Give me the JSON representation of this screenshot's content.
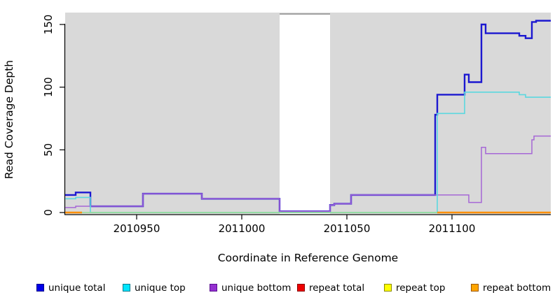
{
  "chart_data": {
    "type": "line",
    "subtype": "step-coverage",
    "title": "",
    "xlabel": "Coordinate in Reference Genome",
    "ylabel": "Read Coverage Depth",
    "xlim": [
      2010916,
      2011147
    ],
    "ylim": [
      0,
      159
    ],
    "x_ticks": [
      {
        "value": 2010950,
        "label": "2010950"
      },
      {
        "value": 2011000,
        "label": "2011000"
      },
      {
        "value": 2011050,
        "label": "2011050"
      },
      {
        "value": 2011100,
        "label": "2011100"
      }
    ],
    "y_ticks": [
      {
        "value": 0,
        "label": "0"
      },
      {
        "value": 50,
        "label": "50"
      },
      {
        "value": 100,
        "label": "100"
      },
      {
        "value": 150,
        "label": "150"
      }
    ],
    "grid": false,
    "plot_background": "#d9d9d9",
    "gap_region": {
      "start": 2011018,
      "end": 2011042,
      "color": "#ffffff",
      "note": "white masked band, full plot height"
    },
    "baseline_overlap": {
      "note": "unique top + repeat top both at 0 render as a light-green baseline across the plot",
      "color": "#92dc92",
      "value": 0,
      "from": 2010916,
      "to": 2011147
    },
    "series": [
      {
        "name": "unique total",
        "color": "#1c18d0",
        "width": 2.4,
        "visible": true,
        "end": 2011147,
        "steps": [
          [
            2010916,
            14
          ],
          [
            2010921,
            16
          ],
          [
            2010928,
            5
          ],
          [
            2010953,
            15
          ],
          [
            2010981,
            11
          ],
          [
            2011018,
            1
          ],
          [
            2011042,
            6
          ],
          [
            2011044,
            7
          ],
          [
            2011052,
            14
          ],
          [
            2011092,
            78
          ],
          [
            2011093,
            94
          ],
          [
            2011106,
            110
          ],
          [
            2011108,
            104
          ],
          [
            2011114,
            150
          ],
          [
            2011116,
            143
          ],
          [
            2011132,
            141
          ],
          [
            2011135,
            139
          ],
          [
            2011138,
            152
          ],
          [
            2011140,
            153
          ]
        ]
      },
      {
        "name": "unique bottom",
        "color": "#a667d6",
        "width": 1.5,
        "visible": true,
        "end": 2011147,
        "steps": [
          [
            2010916,
            4
          ],
          [
            2010921,
            5
          ],
          [
            2010953,
            15
          ],
          [
            2010981,
            11
          ],
          [
            2011018,
            1
          ],
          [
            2011042,
            6
          ],
          [
            2011044,
            7
          ],
          [
            2011052,
            14
          ],
          [
            2011108,
            8
          ],
          [
            2011114,
            52
          ],
          [
            2011116,
            47
          ],
          [
            2011138,
            58
          ],
          [
            2011139,
            61
          ]
        ]
      },
      {
        "name": "unique top",
        "color": "#5bd8df",
        "width": 1.6,
        "visible": true,
        "end": 2011147,
        "steps": [
          [
            2010916,
            11
          ],
          [
            2010921,
            12
          ],
          [
            2010928,
            0
          ],
          [
            2011093,
            79
          ],
          [
            2011106,
            96
          ],
          [
            2011132,
            94
          ],
          [
            2011135,
            92
          ]
        ]
      },
      {
        "name": "repeat total",
        "color": "#ee0000",
        "width": 1.5,
        "visible": false,
        "end": 2011147,
        "steps": [
          [
            2010916,
            0
          ]
        ],
        "note": "flat at 0, hidden beneath overlapping series"
      },
      {
        "name": "repeat top",
        "color": "#ffff00",
        "width": 1.5,
        "visible": false,
        "end": 2011147,
        "steps": [
          [
            2010916,
            0
          ]
        ],
        "note": "flat at 0, blends with unique top into light-green baseline"
      },
      {
        "name": "repeat bottom",
        "color": "#ff8f00",
        "width": 2.4,
        "visible": true,
        "segments": [
          {
            "from": 2010916,
            "to": 2010924,
            "value": 0
          },
          {
            "from": 2011093,
            "to": 2011147,
            "value": 0
          }
        ]
      }
    ],
    "legend": [
      {
        "label": "unique total",
        "fill": "#0000e8",
        "border": "#00008b"
      },
      {
        "label": "unique top",
        "fill": "#00e5ff",
        "border": "#007a8c"
      },
      {
        "label": "unique bottom",
        "fill": "#9430d0",
        "border": "#5b0e91"
      },
      {
        "label": "repeat total",
        "fill": "#ee0000",
        "border": "#8b0000"
      },
      {
        "label": "repeat top",
        "fill": "#ffff00",
        "border": "#8b8b00"
      },
      {
        "label": "repeat bottom",
        "fill": "#ffa500",
        "border": "#9c5700"
      }
    ]
  }
}
